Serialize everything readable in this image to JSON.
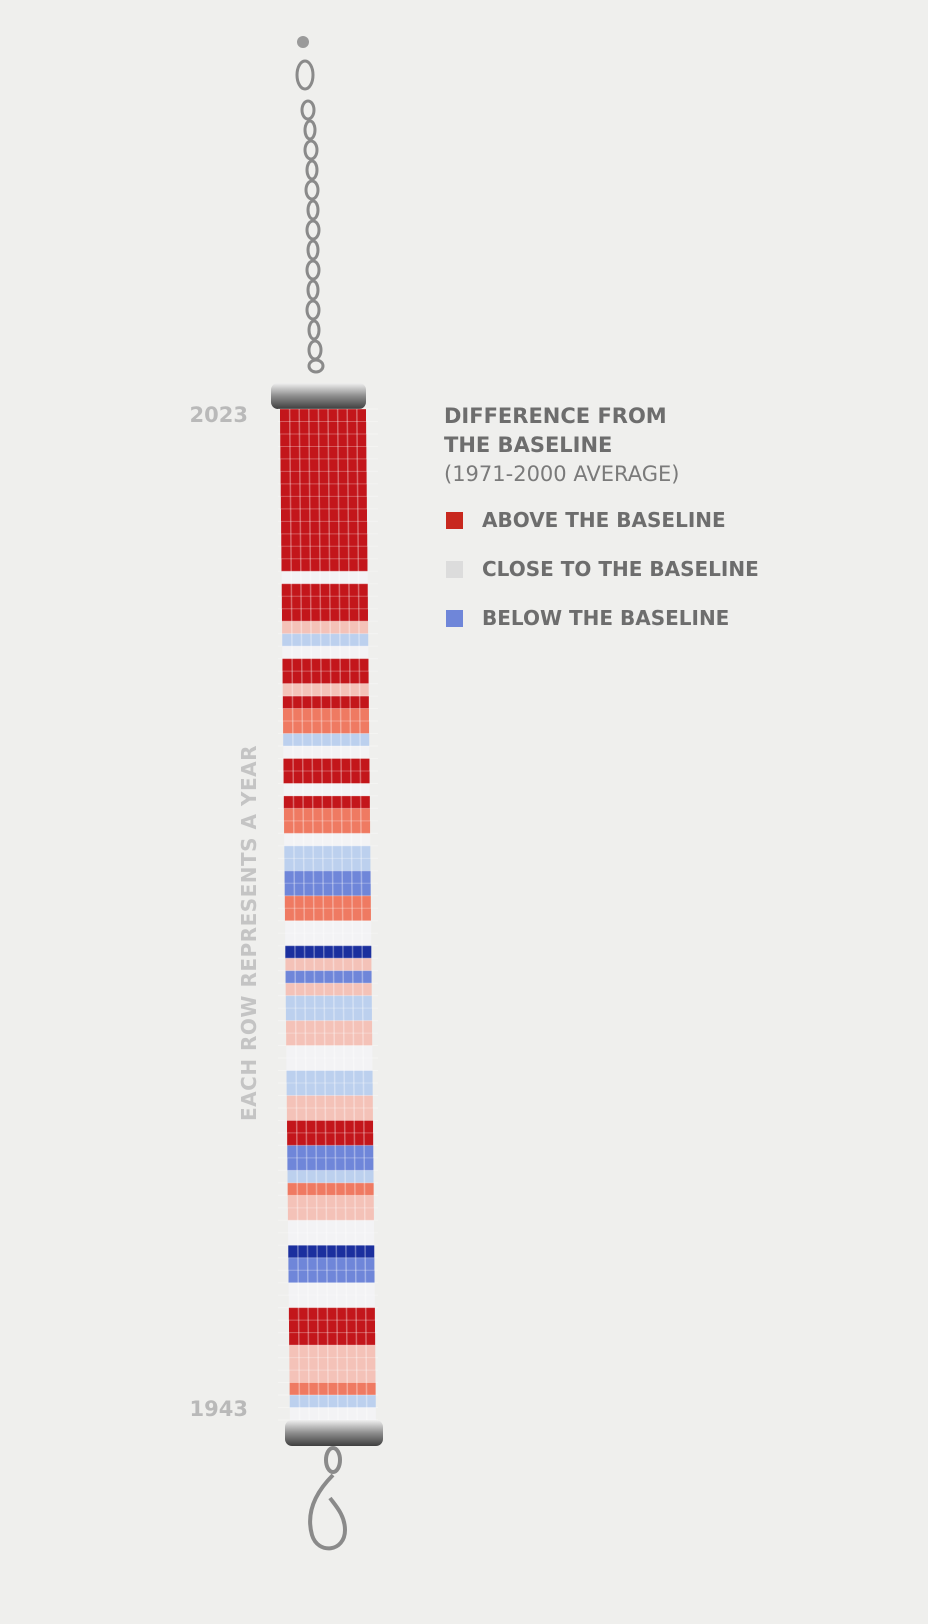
{
  "labels": {
    "top_year": "2023",
    "bottom_year": "1943",
    "axis_note": "EACH ROW REPRESENTS A YEAR"
  },
  "legend": {
    "title_lines": [
      "DIFFERENCE FROM",
      "THE BASELINE"
    ],
    "subtitle": "(1971-2000 AVERAGE)",
    "items": [
      {
        "label": "ABOVE THE BASELINE",
        "color": "#c8281e"
      },
      {
        "label": "CLOSE TO THE BASELINE",
        "color": "#dcdcdc"
      },
      {
        "label": "BELOW THE BASELINE",
        "color": "#6f86d9"
      }
    ]
  },
  "bracelet": {
    "rows": [
      "#c3161b",
      "#c3161b",
      "#c3161b",
      "#c3161b",
      "#c3161b",
      "#c3161b",
      "#c3161b",
      "#c3161b",
      "#c3161b",
      "#c3161b",
      "#c3161b",
      "#c3161b",
      "#c3161b",
      "#f3f3f5",
      "#c3161b",
      "#c3161b",
      "#c3161b",
      "#f4c2b8",
      "#bcd0ee",
      "#f3f3f5",
      "#c3161b",
      "#c3161b",
      "#f4c2b8",
      "#c3161b",
      "#ef7a62",
      "#ef7a62",
      "#bcd0ee",
      "#f3f3f5",
      "#c3161b",
      "#c3161b",
      "#f3f3f5",
      "#c3161b",
      "#ef7a62",
      "#ef7a62",
      "#f3f3f5",
      "#bcd0ee",
      "#bcd0ee",
      "#6f86d9",
      "#6f86d9",
      "#ef7a62",
      "#ef7a62",
      "#f3f3f5",
      "#f3f3f5",
      "#1b2f9e",
      "#f4c2b8",
      "#6f86d9",
      "#f4c2b8",
      "#bcd0ee",
      "#bcd0ee",
      "#f4c2b8",
      "#f4c2b8",
      "#f3f3f5",
      "#f3f3f5",
      "#bcd0ee",
      "#bcd0ee",
      "#f4c2b8",
      "#f4c2b8",
      "#c3161b",
      "#c3161b",
      "#6f86d9",
      "#6f86d9",
      "#bcd0ee",
      "#ef7a62",
      "#f4c2b8",
      "#f4c2b8",
      "#f3f3f5",
      "#f3f3f5",
      "#1b2f9e",
      "#6f86d9",
      "#6f86d9",
      "#f3f3f5",
      "#f3f3f5",
      "#c3161b",
      "#c3161b",
      "#c3161b",
      "#f4c2b8",
      "#f4c2b8",
      "#f4c2b8",
      "#ef7a62",
      "#bcd0ee",
      "#f3f3f5"
    ]
  }
}
